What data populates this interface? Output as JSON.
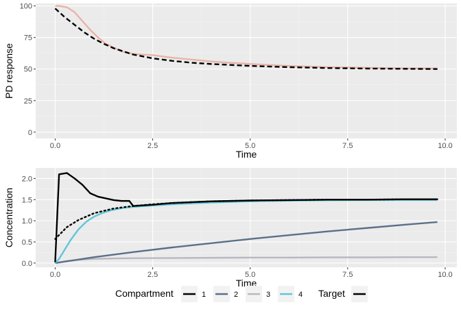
{
  "chart_data": [
    {
      "type": "line",
      "title": "",
      "xlabel": "Time",
      "ylabel": "PD response",
      "xlim": [
        -0.5,
        10.3
      ],
      "ylim": [
        -5,
        102
      ],
      "x_ticks": [
        0.0,
        2.5,
        5.0,
        7.5,
        10.0
      ],
      "x_tick_labels": [
        "0.0",
        "2.5",
        "5.0",
        "7.5",
        "10.0"
      ],
      "y_ticks": [
        0,
        25,
        50,
        75,
        100
      ],
      "y_tick_labels": [
        "0",
        "25",
        "50",
        "75",
        "100"
      ],
      "grid": true,
      "series": [
        {
          "color": "#e8b4a8",
          "style": "solid",
          "x": [
            0.0,
            0.1,
            0.3,
            0.5,
            0.7,
            0.9,
            1.1,
            1.3,
            1.5,
            1.7,
            2.0,
            2.5,
            3.0,
            4.0,
            5.0,
            6.0,
            7.0,
            8.0,
            9.0,
            9.8
          ],
          "y": [
            100,
            100,
            99,
            95,
            88,
            81,
            75,
            70,
            67,
            64,
            62,
            61,
            59,
            56,
            54,
            52.5,
            51.5,
            51,
            50.5,
            50.5
          ]
        },
        {
          "color": "#000000",
          "style": "dashed",
          "x": [
            0.0,
            0.25,
            0.5,
            0.75,
            1.0,
            1.25,
            1.5,
            1.75,
            2.0,
            2.5,
            3.0,
            3.5,
            4.0,
            5.0,
            6.0,
            7.0,
            8.0,
            9.0,
            9.8
          ],
          "y": [
            98,
            91,
            85,
            79,
            74,
            70,
            66.5,
            64,
            61.5,
            58.5,
            56.5,
            55,
            54,
            52.5,
            51.5,
            50.8,
            50.4,
            50.2,
            50
          ]
        }
      ]
    },
    {
      "type": "line",
      "title": "",
      "xlabel": "Time",
      "ylabel": "Concentration",
      "xlim": [
        -0.5,
        10.3
      ],
      "ylim": [
        -0.1,
        2.25
      ],
      "x_ticks": [
        0.0,
        2.5,
        5.0,
        7.5,
        10.0
      ],
      "x_tick_labels": [
        "0.0",
        "2.5",
        "5.0",
        "7.5",
        "10.0"
      ],
      "y_ticks": [
        0.0,
        0.5,
        1.0,
        1.5,
        2.0
      ],
      "y_tick_labels": [
        "0.0",
        "0.5",
        "1.0",
        "1.5",
        "2.0"
      ],
      "grid": true,
      "series": [
        {
          "name": "1",
          "color": "#000000",
          "style": "solid",
          "x": [
            0.0,
            0.1,
            0.3,
            0.5,
            0.7,
            0.9,
            1.1,
            1.3,
            1.5,
            1.7,
            1.9,
            2.0,
            2.5,
            3.0,
            4.0,
            5.0,
            6.0,
            7.0,
            8.0,
            9.0,
            9.8
          ],
          "y": [
            0.02,
            2.1,
            2.13,
            2.0,
            1.85,
            1.65,
            1.57,
            1.53,
            1.49,
            1.47,
            1.47,
            1.35,
            1.38,
            1.42,
            1.46,
            1.48,
            1.49,
            1.5,
            1.5,
            1.51,
            1.51
          ]
        },
        {
          "name": "2",
          "color": "#5b6f8a",
          "style": "solid",
          "x": [
            0.0,
            0.5,
            1.0,
            2.0,
            3.0,
            4.0,
            5.0,
            6.0,
            7.0,
            8.0,
            9.0,
            9.8
          ],
          "y": [
            0.0,
            0.07,
            0.14,
            0.26,
            0.37,
            0.47,
            0.57,
            0.66,
            0.75,
            0.83,
            0.91,
            0.97
          ]
        },
        {
          "name": "3",
          "color": "#b8b8c0",
          "style": "solid",
          "x": [
            0.0,
            0.3,
            0.6,
            1.0,
            1.5,
            2.0,
            3.0,
            4.0,
            5.0,
            6.0,
            7.0,
            8.0,
            9.0,
            9.8
          ],
          "y": [
            0.0,
            0.05,
            0.08,
            0.1,
            0.11,
            0.115,
            0.12,
            0.125,
            0.13,
            0.13,
            0.135,
            0.135,
            0.14,
            0.14
          ]
        },
        {
          "name": "4",
          "color": "#5fc6d8",
          "style": "solid",
          "x": [
            0.0,
            0.1,
            0.2,
            0.4,
            0.6,
            0.8,
            1.0,
            1.2,
            1.4,
            1.6,
            1.8,
            2.0,
            2.5,
            3.0,
            4.0,
            5.0,
            6.0,
            7.0,
            8.0,
            9.0,
            9.8
          ],
          "y": [
            0.0,
            0.1,
            0.25,
            0.55,
            0.8,
            0.98,
            1.1,
            1.18,
            1.24,
            1.28,
            1.31,
            1.33,
            1.36,
            1.39,
            1.43,
            1.46,
            1.475,
            1.485,
            1.49,
            1.49,
            1.49
          ]
        },
        {
          "name": "Target",
          "color": "#000000",
          "style": "dotted",
          "x": [
            0.0,
            0.3,
            0.6,
            1.0,
            1.5,
            2.0,
            2.5,
            3.0,
            4.0,
            5.0,
            6.0,
            7.0,
            8.0,
            9.0,
            9.8
          ],
          "y": [
            0.57,
            0.85,
            1.02,
            1.18,
            1.29,
            1.35,
            1.39,
            1.42,
            1.46,
            1.48,
            1.49,
            1.5,
            1.5,
            1.51,
            1.51
          ]
        }
      ]
    }
  ],
  "legend": {
    "position": "bottom",
    "compartment_title": "Compartment",
    "compartment_items": [
      {
        "label": "1",
        "color": "#000000"
      },
      {
        "label": "2",
        "color": "#5b6f8a"
      },
      {
        "label": "3",
        "color": "#b8b8c0"
      },
      {
        "label": "4",
        "color": "#5fc6d8"
      }
    ],
    "target_title": "Target",
    "target_color": "#000000"
  },
  "colors": {
    "panel_background": "#ebebeb",
    "grid_major": "#ffffff",
    "grid_minor": "#f4f4f4",
    "legend_key_background": "#f2f2f2"
  }
}
